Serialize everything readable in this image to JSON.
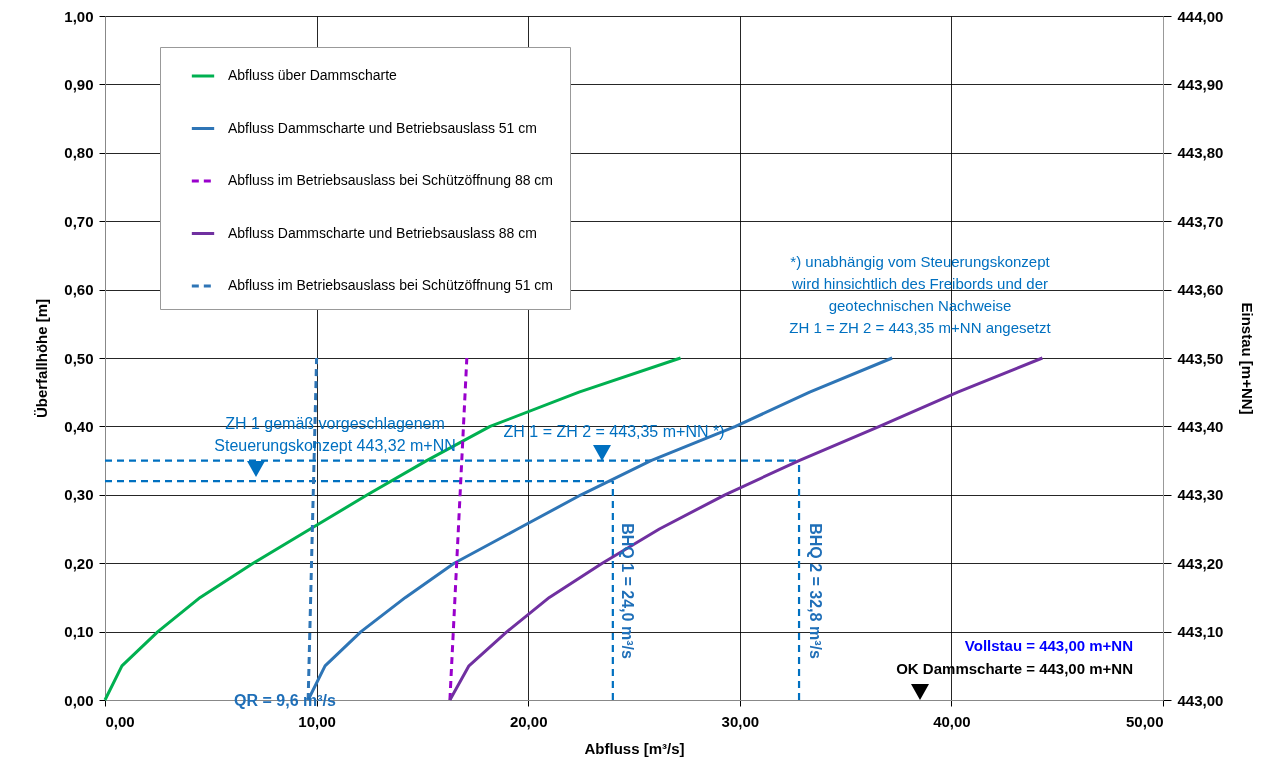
{
  "chart_data": {
    "type": "line",
    "xlabel": "Abfluss [m³/s]",
    "ylabel": "Überfallhöhe [m]",
    "y2label": "Einstau [m+NN]",
    "xlim": [
      0,
      50
    ],
    "xticks": [
      {
        "value": 0,
        "label": "0,00"
      },
      {
        "value": 10,
        "label": "10,00"
      },
      {
        "value": 20,
        "label": "20,00"
      },
      {
        "value": 30,
        "label": "30,00"
      },
      {
        "value": 40,
        "label": "40,00"
      },
      {
        "value": 50,
        "label": "50,00"
      }
    ],
    "ylim": [
      0,
      1
    ],
    "yticks": [
      {
        "value": 0,
        "label": "0,00"
      },
      {
        "value": 0.1,
        "label": "0,10"
      },
      {
        "value": 0.2,
        "label": "0,20"
      },
      {
        "value": 0.3,
        "label": "0,30"
      },
      {
        "value": 0.4,
        "label": "0,40"
      },
      {
        "value": 0.5,
        "label": "0,50"
      },
      {
        "value": 0.6,
        "label": "0,60"
      },
      {
        "value": 0.7,
        "label": "0,70"
      },
      {
        "value": 0.8,
        "label": "0,80"
      },
      {
        "value": 0.9,
        "label": "0,90"
      },
      {
        "value": 1,
        "label": "1,00"
      }
    ],
    "y2lim": [
      443,
      444
    ],
    "y2ticks": [
      {
        "value": 443,
        "label": "443,00"
      },
      {
        "value": 443.1,
        "label": "443,10"
      },
      {
        "value": 443.2,
        "label": "443,20"
      },
      {
        "value": 443.3,
        "label": "443,30"
      },
      {
        "value": 443.4,
        "label": "443,40"
      },
      {
        "value": 443.5,
        "label": "443,50"
      },
      {
        "value": 443.6,
        "label": "443,60"
      },
      {
        "value": 443.7,
        "label": "443,70"
      },
      {
        "value": 443.8,
        "label": "443,80"
      },
      {
        "value": 443.9,
        "label": "443,90"
      },
      {
        "value": 444,
        "label": "444,00"
      }
    ],
    "grid": true,
    "legend": "top left",
    "marker": "none",
    "line_style": "solid",
    "series": [
      {
        "name": "Abfluss über Dammscharte",
        "color": "#00b050",
        "x": [
          0,
          0.8,
          2.5,
          4.5,
          7.0,
          9.7,
          12.4,
          15.2,
          18.2,
          22.4,
          27.2
        ],
        "values": [
          0,
          0.05,
          0.1,
          0.15,
          0.2,
          0.25,
          0.3,
          0.35,
          0.4,
          0.45,
          0.5
        ]
      },
      {
        "name": "Abfluss Dammscharte und Betriebsauslass 51 cm",
        "color": "#2e75b6",
        "x": [
          9.6,
          10.4,
          12.1,
          14.2,
          16.5,
          19.5,
          22.5,
          25.8,
          29.8,
          33.3,
          37.2
        ],
        "values": [
          0,
          0.05,
          0.1,
          0.15,
          0.2,
          0.25,
          0.3,
          0.35,
          0.4,
          0.45,
          0.5
        ]
      },
      {
        "name": "Abfluss im Betriebsauslass bei Schützöffnung 88 cm",
        "color": "#9900cc",
        "line_style": "dashed",
        "x": [
          16.3,
          17.1
        ],
        "values": [
          0,
          0.5
        ]
      },
      {
        "name": "Abfluss Dammscharte und Betriebsauslass 88 cm",
        "color": "#7030a0",
        "x": [
          16.3,
          17.2,
          19.0,
          21.0,
          23.5,
          26.2,
          29.3,
          32.8,
          36.6,
          40.3,
          44.3
        ],
        "values": [
          0,
          0.05,
          0.1,
          0.15,
          0.2,
          0.25,
          0.3,
          0.35,
          0.4,
          0.45,
          0.5
        ]
      },
      {
        "name": "Abfluss im Betriebsauslass bei Schützöffnung 51 cm",
        "color": "#2e75b6",
        "line_style": "dashed",
        "x": [
          9.6,
          10.0
        ],
        "values": [
          0,
          0.5
        ]
      },
      {
        "color": "#0070c0",
        "line_style": "dashed",
        "x": [
          0,
          32.8
        ],
        "values": [
          0.35,
          0.35
        ]
      },
      {
        "color": "#0070c0",
        "line_style": "dashed",
        "x": [
          0,
          24.0
        ],
        "values": [
          0.32,
          0.32
        ]
      },
      {
        "color": "#0070c0",
        "line_style": "dashed",
        "x": [
          24.0,
          24.0
        ],
        "values": [
          0,
          0.32
        ]
      },
      {
        "color": "#0070c0",
        "line_style": "dashed",
        "x": [
          32.8,
          32.8
        ],
        "values": [
          0,
          0.35
        ]
      }
    ],
    "annotations": [
      "ZH 1 gemäß vorgeschlagenem\nSteuerungskonzept 443,32 m+NN",
      "ZH 1 = ZH 2 = 443,35 m+NN *)",
      "*) unabhängig vom Steuerungskonzept\nwird hinsichtlich des Freibords und der\ngeotechnischen Nachweise\n ZH 1 = ZH 2 = 443,35 m+NN angesetzt",
      "QR = 9,6 m³/s",
      "BHQ 1 = 24,0 m³/s",
      "BHQ 2 = 32,8 m³/s",
      "Vollstau = 443,00 m+NN",
      "OK Dammscharte = 443,00 m+NN"
    ]
  }
}
